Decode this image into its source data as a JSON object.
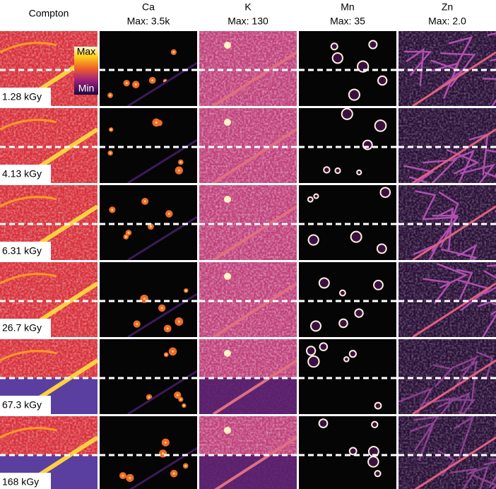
{
  "columns": [
    {
      "title": "Compton"
    },
    {
      "title": "Ca",
      "max": "Max: 3.5k"
    },
    {
      "title": "K",
      "max": "Max: 130"
    },
    {
      "title": "Mn",
      "max": "Max: 35"
    },
    {
      "title": "Zn",
      "max": "Max: 2.0"
    }
  ],
  "rows": [
    {
      "label": "1.28 kGy"
    },
    {
      "label": "4.13 kGy"
    },
    {
      "label": "6.31 kGy"
    },
    {
      "label": "26.7 kGy"
    },
    {
      "label": "67.3 kGy"
    },
    {
      "label": "168 kGy"
    }
  ],
  "colorbar": {
    "top": "Max",
    "bottom": "Min"
  }
}
